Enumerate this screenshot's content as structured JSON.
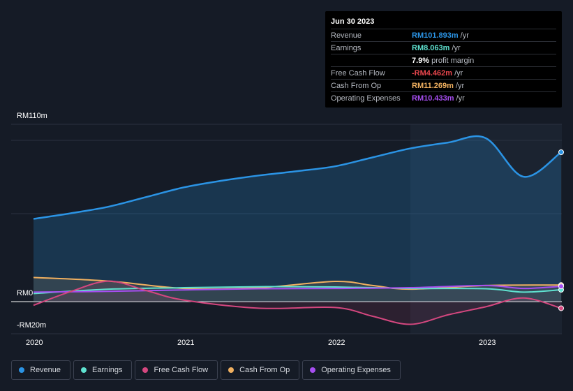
{
  "tooltip": {
    "date": "Jun 30 2023",
    "rows": [
      {
        "label": "Revenue",
        "value": "RM101.893m",
        "unit": "/yr",
        "color": "#2b94e5"
      },
      {
        "label": "Earnings",
        "value": "RM8.063m",
        "unit": "/yr",
        "color": "#5fe2d0"
      },
      {
        "label": "",
        "value": "7.9%",
        "unit": "profit margin",
        "color": "#ffffff"
      },
      {
        "label": "Free Cash Flow",
        "value": "-RM4.462m",
        "unit": "/yr",
        "color": "#e8464d"
      },
      {
        "label": "Cash From Op",
        "value": "RM11.269m",
        "unit": "/yr",
        "color": "#f0b060"
      },
      {
        "label": "Operating Expenses",
        "value": "RM10.433m",
        "unit": "/yr",
        "color": "#a64ef0"
      }
    ]
  },
  "legend": [
    {
      "label": "Revenue",
      "color": "#2b94e5"
    },
    {
      "label": "Earnings",
      "color": "#5fe2d0"
    },
    {
      "label": "Free Cash Flow",
      "color": "#d4477f"
    },
    {
      "label": "Cash From Op",
      "color": "#f0b060"
    },
    {
      "label": "Operating Expenses",
      "color": "#a64ef0"
    }
  ],
  "chart_data": {
    "type": "area",
    "ylabels": [
      "RM110m",
      "RM0",
      "-RM20m"
    ],
    "xlabels": [
      "2020",
      "2021",
      "2022",
      "2023"
    ],
    "ylim": [
      -20,
      110
    ],
    "xlim": [
      2019.9,
      2023.5
    ],
    "x_ticks": [
      2020,
      2021,
      2022,
      2023
    ],
    "highlight_start": 2022.5,
    "series": [
      {
        "name": "Revenue",
        "color": "#2b94e5",
        "fill": true,
        "x": [
          2020.0,
          2020.25,
          2020.5,
          2020.75,
          2021.0,
          2021.25,
          2021.5,
          2021.75,
          2022.0,
          2022.25,
          2022.5,
          2022.75,
          2023.0,
          2023.25,
          2023.5
        ],
        "y": [
          56.4,
          60.3,
          64.8,
          71.4,
          78.0,
          82.5,
          86.1,
          89.0,
          92.3,
          98.4,
          104.5,
          108.5,
          111.5,
          85.2,
          101.9
        ]
      },
      {
        "name": "Earnings",
        "color": "#5fe2d0",
        "fill": false,
        "x": [
          2020.0,
          2020.5,
          2021.0,
          2021.5,
          2022.0,
          2022.5,
          2023.0,
          2023.25,
          2023.5
        ],
        "y": [
          5.5,
          8.5,
          9.5,
          10.2,
          10.0,
          9.0,
          8.8,
          6.5,
          8.1
        ]
      },
      {
        "name": "Free Cash Flow",
        "color": "#d4477f",
        "fill": false,
        "x": [
          2020.0,
          2020.25,
          2020.5,
          2020.75,
          2021.0,
          2021.5,
          2022.0,
          2022.25,
          2022.5,
          2022.75,
          2023.0,
          2023.25,
          2023.5
        ],
        "y": [
          -2.5,
          7.0,
          14.0,
          7.5,
          1.0,
          -4.5,
          -4.0,
          -10.0,
          -15.5,
          -9.0,
          -3.5,
          2.5,
          -4.5
        ]
      },
      {
        "name": "Cash From Op",
        "color": "#f0b060",
        "fill": false,
        "x": [
          2020.0,
          2020.5,
          2021.0,
          2021.5,
          2022.0,
          2022.25,
          2022.5,
          2023.0,
          2023.5
        ],
        "y": [
          16.5,
          14.0,
          9.0,
          9.5,
          13.8,
          11.0,
          8.5,
          11.0,
          11.3
        ]
      },
      {
        "name": "Operating Expenses",
        "color": "#a64ef0",
        "fill": false,
        "x": [
          2020.0,
          2020.5,
          2021.0,
          2021.5,
          2022.0,
          2022.5,
          2023.0,
          2023.25,
          2023.5
        ],
        "y": [
          6.5,
          7.0,
          8.0,
          8.8,
          9.0,
          9.5,
          11.0,
          9.0,
          10.4
        ]
      }
    ]
  }
}
